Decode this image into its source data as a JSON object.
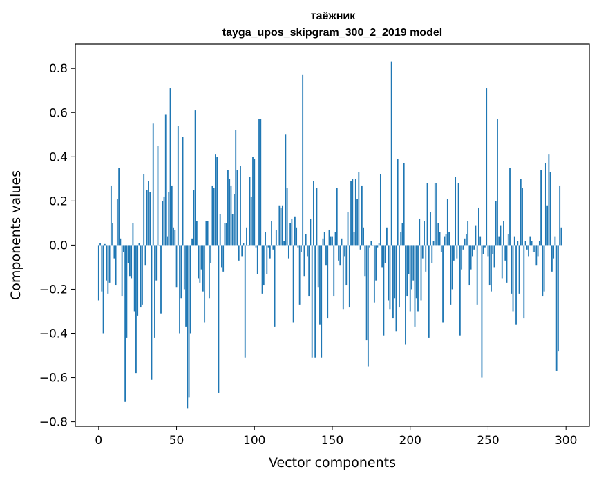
{
  "chart_data": {
    "type": "bar",
    "title": "таёжник",
    "subtitle": "tayga_upos_skipgram_300_2_2019 model",
    "xlabel": "Vector components",
    "ylabel": "Components values",
    "xlim": [
      -15,
      315
    ],
    "ylim": [
      -0.82,
      0.91
    ],
    "x_ticks": [
      0,
      50,
      100,
      150,
      200,
      250,
      300
    ],
    "x_tick_labels": [
      "0",
      "50",
      "100",
      "150",
      "200",
      "250",
      "300"
    ],
    "y_ticks": [
      -0.8,
      -0.6,
      -0.4,
      -0.2,
      0.0,
      0.2,
      0.4,
      0.6,
      0.8
    ],
    "y_tick_labels": [
      "−0.8",
      "−0.6",
      "−0.4",
      "−0.2",
      "0.0",
      "0.2",
      "0.4",
      "0.6",
      "0.8"
    ],
    "grid": false,
    "bar_color": "#1f77b4",
    "values": [
      -0.25,
      0.01,
      -0.21,
      -0.4,
      0.005,
      -0.16,
      -0.22,
      -0.17,
      0.27,
      0.1,
      -0.06,
      -0.18,
      0.21,
      0.35,
      0.03,
      -0.23,
      -0.03,
      -0.71,
      -0.42,
      -0.08,
      -0.14,
      -0.15,
      0.1,
      -0.3,
      -0.58,
      -0.32,
      0.01,
      -0.28,
      -0.27,
      0.32,
      -0.09,
      0.25,
      0.29,
      0.24,
      -0.61,
      0.55,
      -0.42,
      -0.16,
      0.45,
      0.0,
      -0.31,
      0.2,
      0.22,
      0.59,
      0.04,
      0.24,
      0.71,
      0.27,
      0.08,
      0.07,
      -0.19,
      0.54,
      -0.4,
      -0.24,
      0.49,
      -0.2,
      -0.37,
      -0.74,
      -0.69,
      -0.4,
      0.03,
      0.25,
      0.61,
      0.11,
      -0.15,
      -0.17,
      -0.11,
      -0.21,
      -0.35,
      0.11,
      0.11,
      -0.24,
      -0.08,
      0.27,
      0.26,
      0.41,
      0.4,
      -0.67,
      0.14,
      -0.1,
      -0.12,
      0.1,
      0.1,
      0.34,
      0.3,
      0.27,
      0.14,
      0.23,
      0.52,
      0.34,
      -0.07,
      0.36,
      -0.05,
      0.01,
      -0.51,
      0.08,
      0.0,
      0.31,
      0.22,
      0.4,
      0.39,
      -0.01,
      -0.13,
      0.57,
      0.57,
      -0.22,
      -0.18,
      0.06,
      -0.13,
      -0.01,
      -0.06,
      0.11,
      -0.02,
      -0.37,
      0.07,
      0.0,
      0.18,
      0.17,
      0.18,
      0.02,
      0.5,
      0.26,
      -0.06,
      0.1,
      0.12,
      -0.35,
      0.13,
      0.08,
      -0.01,
      -0.27,
      -0.03,
      0.77,
      -0.14,
      0.05,
      -0.05,
      -0.23,
      0.12,
      -0.51,
      0.29,
      -0.51,
      0.26,
      -0.19,
      -0.36,
      -0.51,
      0.03,
      0.06,
      -0.09,
      -0.33,
      0.07,
      0.04,
      0.04,
      -0.23,
      0.06,
      0.26,
      -0.07,
      -0.09,
      0.03,
      -0.29,
      -0.05,
      -0.18,
      0.15,
      -0.28,
      0.29,
      0.3,
      0.06,
      0.3,
      0.21,
      0.33,
      -0.02,
      0.27,
      0.08,
      -0.14,
      -0.43,
      -0.55,
      -0.01,
      0.02,
      0.0,
      -0.26,
      -0.16,
      -0.01,
      0.01,
      0.32,
      -0.1,
      -0.41,
      -0.08,
      0.08,
      -0.25,
      -0.29,
      0.83,
      -0.33,
      -0.24,
      -0.39,
      0.39,
      -0.28,
      0.06,
      0.1,
      0.37,
      -0.45,
      -0.23,
      -0.13,
      -0.3,
      -0.2,
      -0.16,
      -0.37,
      -0.24,
      -0.3,
      0.12,
      -0.25,
      -0.06,
      0.11,
      -0.12,
      0.28,
      -0.42,
      0.15,
      -0.08,
      0.02,
      0.28,
      0.28,
      0.1,
      0.06,
      -0.03,
      -0.35,
      0.04,
      0.05,
      0.21,
      0.06,
      -0.27,
      -0.2,
      -0.07,
      0.31,
      -0.06,
      0.28,
      -0.41,
      -0.11,
      -0.02,
      0.03,
      0.05,
      0.11,
      -0.18,
      -0.11,
      -0.05,
      -0.02,
      0.09,
      -0.27,
      0.17,
      0.04,
      -0.6,
      -0.04,
      -0.01,
      0.71,
      -0.05,
      -0.18,
      -0.21,
      -0.04,
      -0.1,
      0.2,
      0.57,
      0.04,
      0.09,
      -0.15,
      0.11,
      -0.07,
      -0.17,
      0.05,
      0.35,
      -0.22,
      -0.3,
      0.04,
      -0.36,
      0.02,
      -0.22,
      0.3,
      0.26,
      -0.33,
      0.02,
      -0.02,
      -0.05,
      0.04,
      0.02,
      -0.03,
      -0.03,
      -0.09,
      -0.05,
      0.02,
      0.34,
      -0.23,
      -0.21,
      0.37,
      0.18,
      0.41,
      0.33,
      -0.12,
      -0.06,
      0.04,
      -0.57,
      -0.48,
      0.27,
      0.08
    ]
  }
}
